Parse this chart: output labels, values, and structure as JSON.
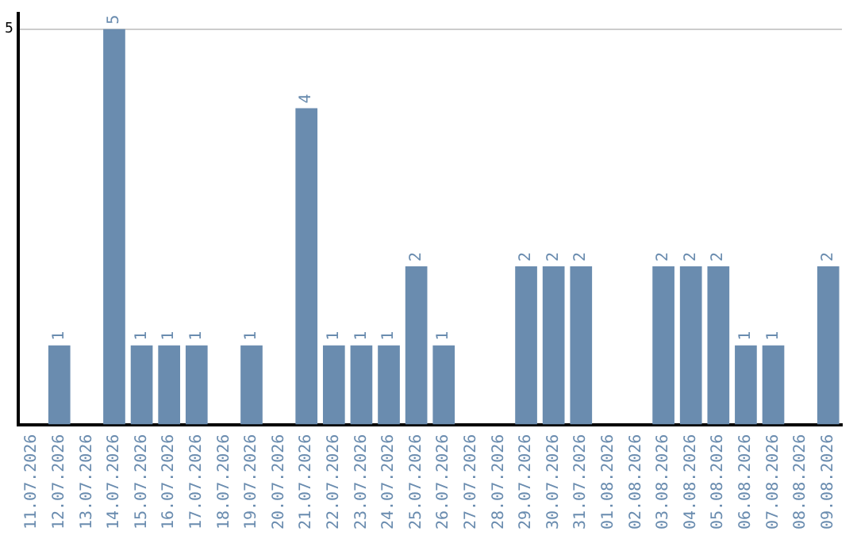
{
  "chart_data": {
    "type": "bar",
    "categories": [
      "11.07.2026",
      "12.07.2026",
      "13.07.2026",
      "14.07.2026",
      "15.07.2026",
      "16.07.2026",
      "17.07.2026",
      "18.07.2026",
      "19.07.2026",
      "20.07.2026",
      "21.07.2026",
      "22.07.2026",
      "23.07.2026",
      "24.07.2026",
      "25.07.2026",
      "26.07.2026",
      "27.07.2026",
      "28.07.2026",
      "29.07.2026",
      "30.07.2026",
      "31.07.2026",
      "01.08.2026",
      "02.08.2026",
      "03.08.2026",
      "04.08.2026",
      "05.08.2026",
      "06.08.2026",
      "07.08.2026",
      "08.08.2026",
      "09.08.2026"
    ],
    "values": [
      0,
      1,
      0,
      5,
      1,
      1,
      1,
      0,
      1,
      0,
      4,
      1,
      1,
      1,
      2,
      1,
      0,
      0,
      2,
      2,
      2,
      0,
      0,
      2,
      2,
      2,
      1,
      1,
      0,
      2
    ],
    "value_labels": [
      null,
      "1",
      null,
      "5",
      "1",
      "1",
      "1",
      null,
      "1",
      null,
      "4",
      "1",
      "1",
      "1",
      "2",
      "1",
      null,
      null,
      "2",
      "2",
      "2",
      null,
      null,
      "2",
      "2",
      "2",
      "1",
      "1",
      null,
      "2"
    ],
    "color": "#6a8caf",
    "ylim": [
      0,
      5.2
    ],
    "yticks": [
      5
    ],
    "grid": "y",
    "legend": false
  }
}
